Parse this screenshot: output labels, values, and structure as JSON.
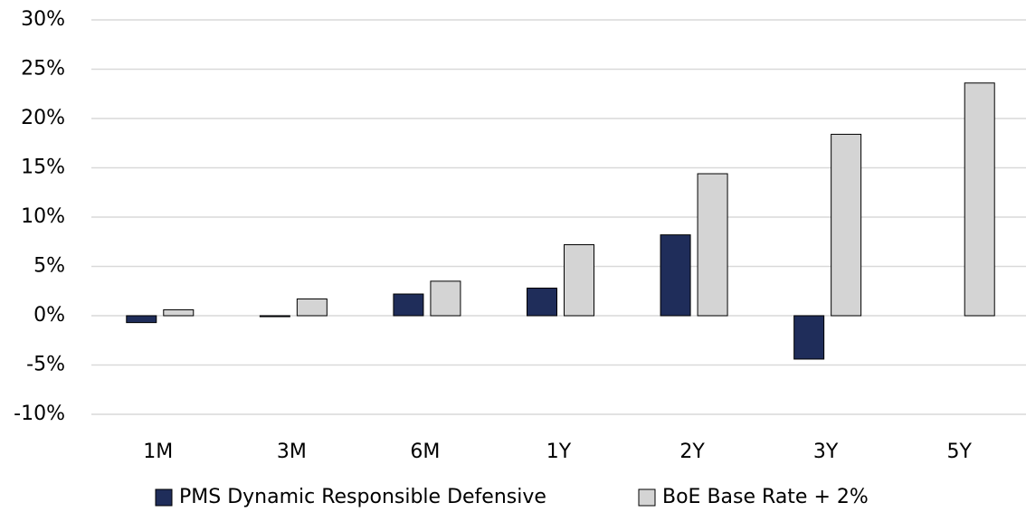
{
  "chart_data": {
    "type": "bar",
    "categories": [
      "1M",
      "3M",
      "6M",
      "1Y",
      "2Y",
      "3Y",
      "5Y"
    ],
    "series": [
      {
        "name": "PMS Dynamic Responsible Defensive",
        "color": "#1f2d5a",
        "values": [
          -0.7,
          -0.1,
          2.2,
          2.8,
          8.2,
          -4.4,
          null
        ]
      },
      {
        "name": "BoE Base Rate + 2%",
        "color": "#d4d4d4",
        "values": [
          0.6,
          1.7,
          3.5,
          7.2,
          14.4,
          18.4,
          23.6
        ]
      }
    ],
    "ylim": [
      -10,
      30
    ],
    "yticks": [
      {
        "value": -10,
        "label": "-10%"
      },
      {
        "value": -5,
        "label": "-5%"
      },
      {
        "value": 0,
        "label": "0%"
      },
      {
        "value": 5,
        "label": "5%"
      },
      {
        "value": 10,
        "label": "10%"
      },
      {
        "value": 15,
        "label": "15%"
      },
      {
        "value": 20,
        "label": "20%"
      },
      {
        "value": 25,
        "label": "25%"
      },
      {
        "value": 30,
        "label": "30%"
      }
    ],
    "grid": true
  }
}
